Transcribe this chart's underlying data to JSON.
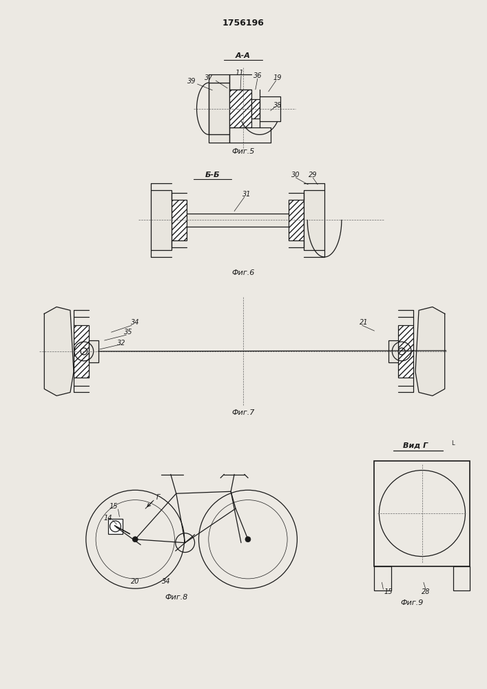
{
  "title": "1756196",
  "background_color": "#ece9e3",
  "line_color": "#1a1a1a",
  "fig5_label": "Фиг.5",
  "fig6_label": "Фиг.6",
  "fig7_label": "Фиг.7",
  "fig8_label": "Фиг.8",
  "fig9_label": "Фиг.9",
  "section_aa": "А-А",
  "section_bb": "Б-Б",
  "view_g": "Вид Г"
}
